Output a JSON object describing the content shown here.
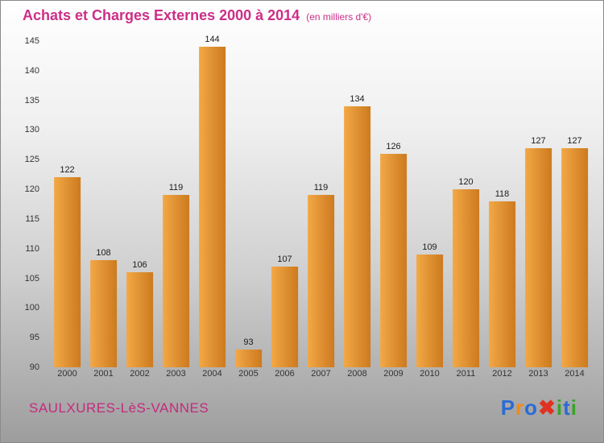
{
  "chart_data": {
    "type": "bar",
    "title": "Achats et Charges Externes 2000 à 2014",
    "subtitle": "(en milliers d'€)",
    "categories": [
      "2000",
      "2001",
      "2002",
      "2003",
      "2004",
      "2005",
      "2006",
      "2007",
      "2008",
      "2009",
      "2010",
      "2011",
      "2012",
      "2013",
      "2014"
    ],
    "values": [
      122,
      108,
      106,
      119,
      144,
      93,
      107,
      119,
      134,
      126,
      109,
      120,
      118,
      127,
      127
    ],
    "xlabel": "",
    "ylabel": "",
    "ylim": [
      90,
      145
    ],
    "ytick_step": 5,
    "grid": false,
    "legend_position": "none",
    "bar_value_labels": true
  },
  "footer": {
    "commune": "SAULXURES-LèS-VANNES"
  },
  "logo": {
    "name": "Proxiti",
    "letters": [
      {
        "ch": "P",
        "color": "#2b6bd4"
      },
      {
        "ch": "r",
        "color": "#f08a18"
      },
      {
        "ch": "o",
        "color": "#2b6bd4"
      },
      {
        "ch": "✖",
        "color": "#e03222"
      },
      {
        "ch": "i",
        "color": "#3aa32a"
      },
      {
        "ch": "t",
        "color": "#2b6bd4"
      },
      {
        "ch": "i",
        "color": "#3aa32a"
      }
    ]
  },
  "colors": {
    "title_text": "#cc2e87",
    "commune_text": "#c32a7d",
    "axis_label": "#333333",
    "value_label": "#1b1b1b",
    "bar_start": "#f3a845",
    "bar_end": "#cc7a1f"
  }
}
